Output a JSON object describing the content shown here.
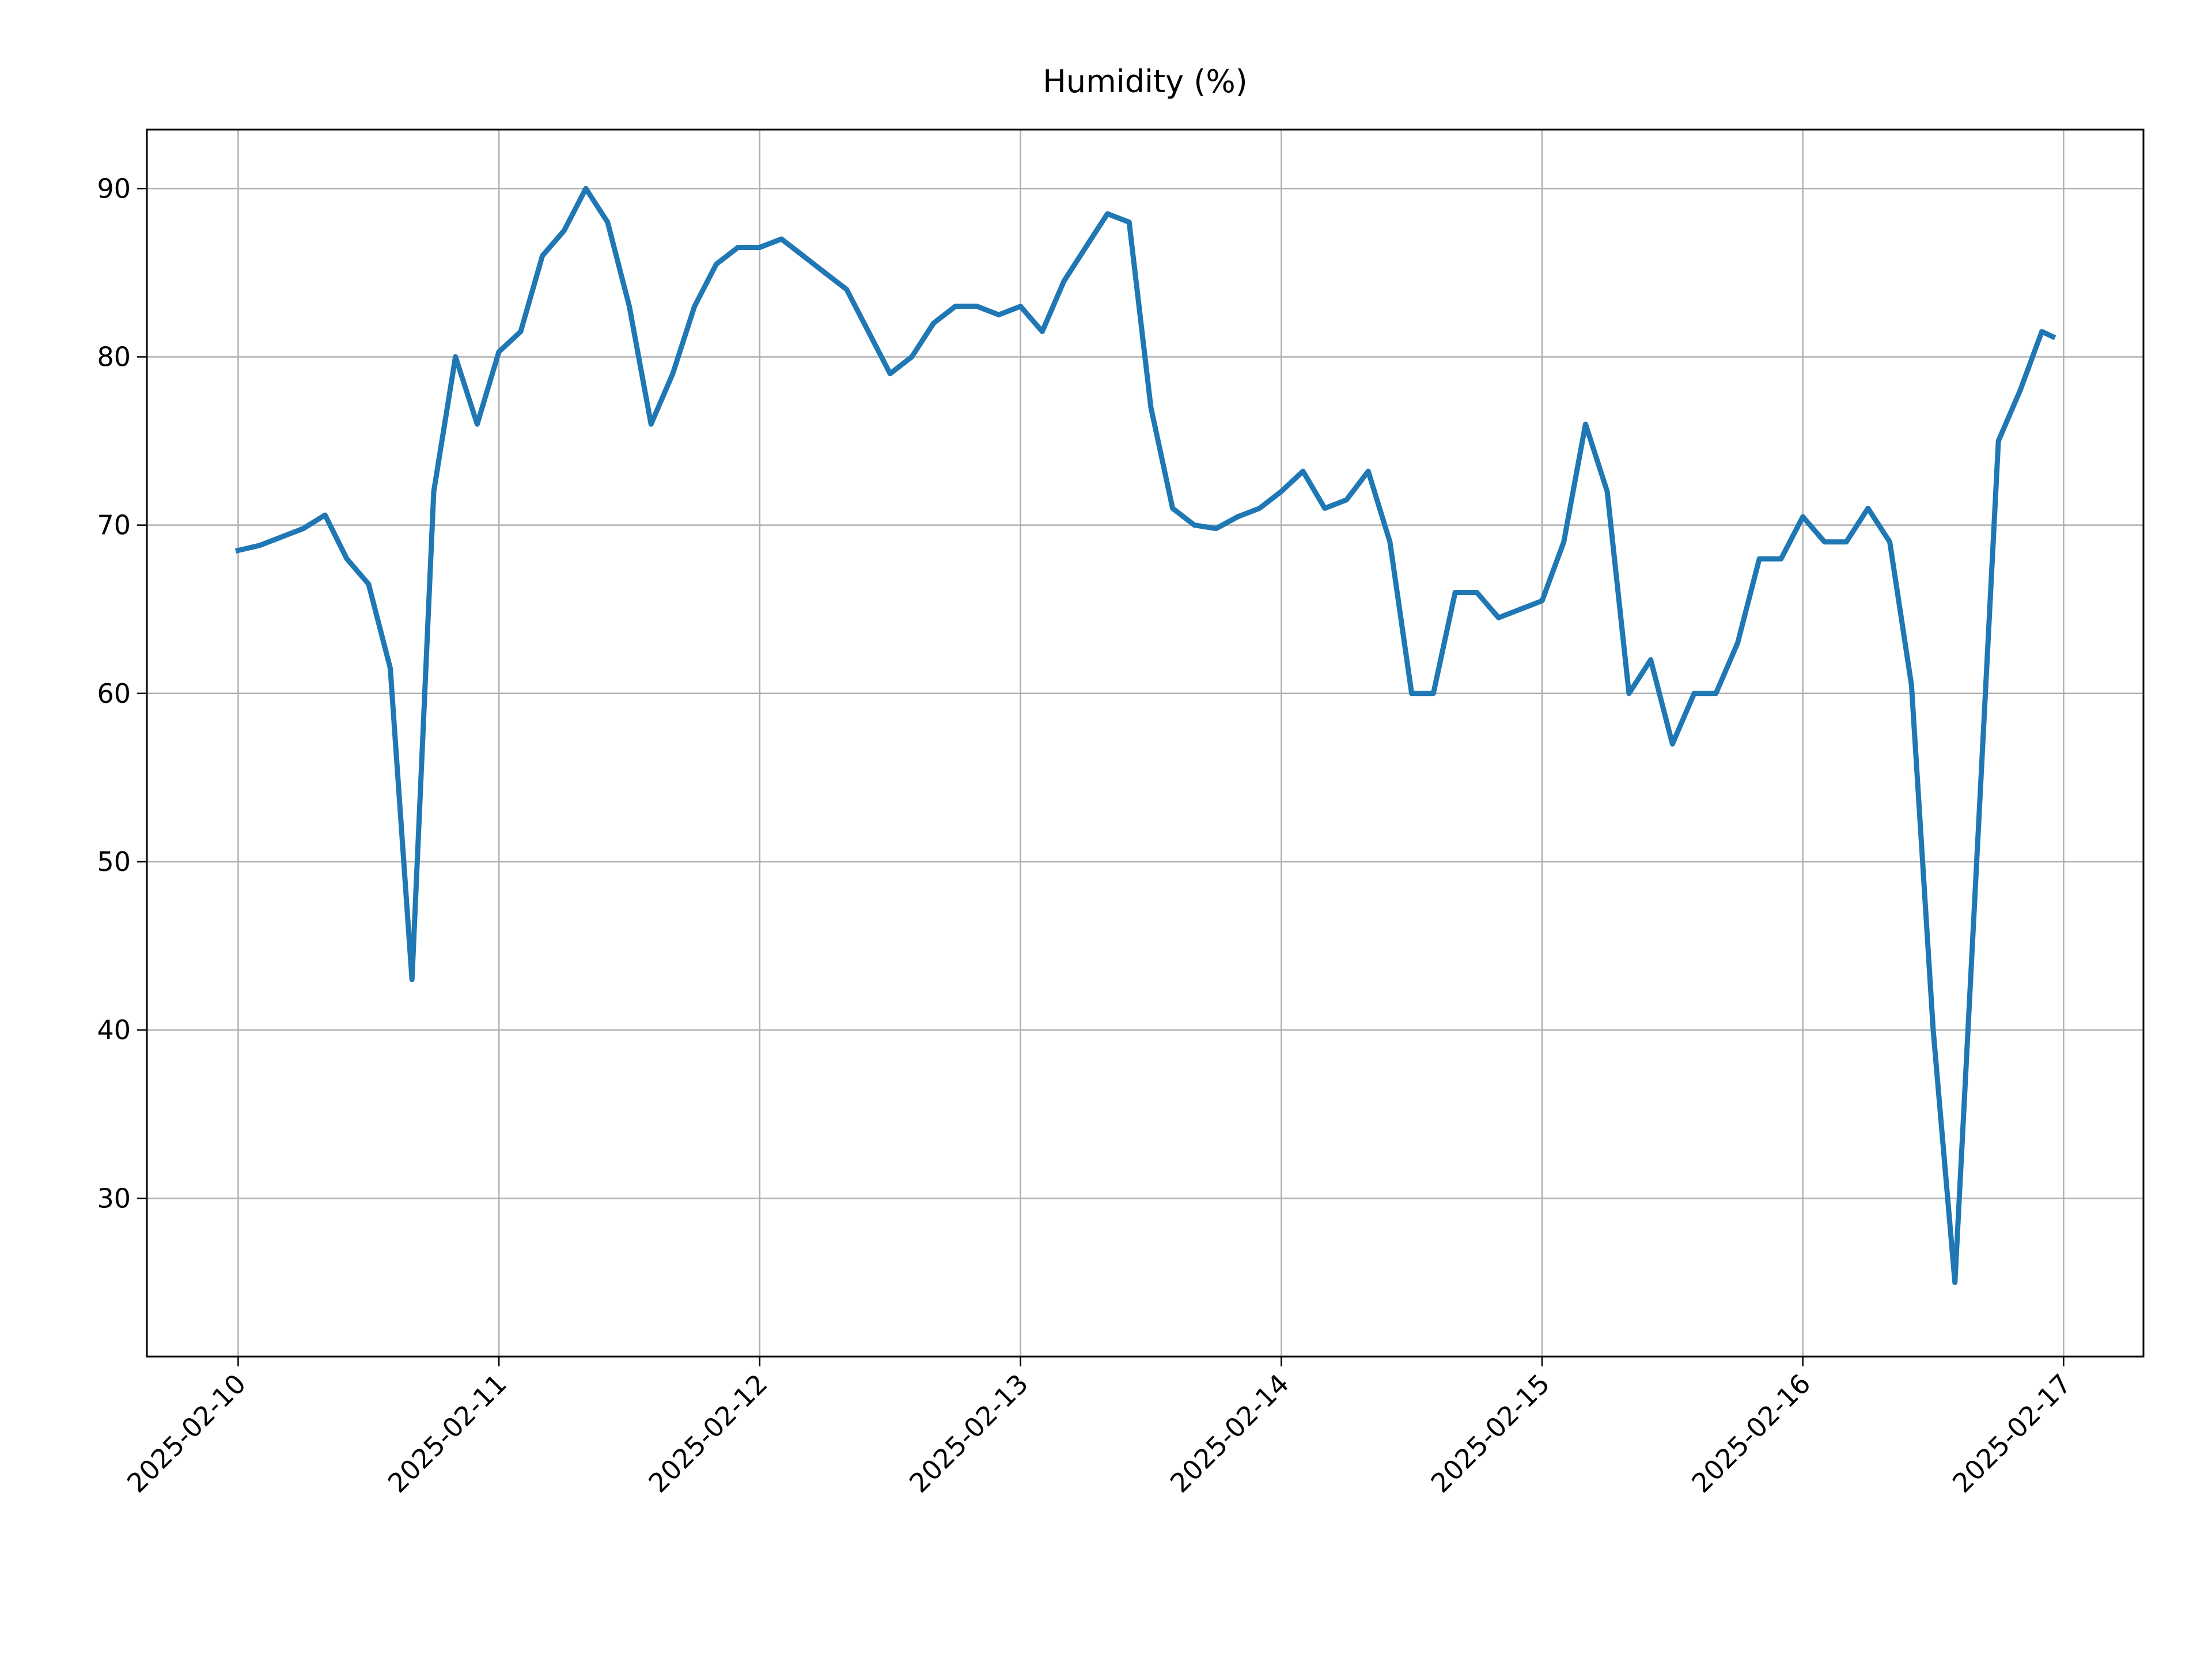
{
  "chart_data": {
    "type": "line",
    "title": "Humidity (%)",
    "x": [
      "2025-02-10T00:00",
      "2025-02-10T02:00",
      "2025-02-10T04:00",
      "2025-02-10T06:00",
      "2025-02-10T08:00",
      "2025-02-10T10:00",
      "2025-02-10T12:00",
      "2025-02-10T14:00",
      "2025-02-10T16:00",
      "2025-02-10T18:00",
      "2025-02-10T20:00",
      "2025-02-10T22:00",
      "2025-02-11T00:00",
      "2025-02-11T02:00",
      "2025-02-11T04:00",
      "2025-02-11T06:00",
      "2025-02-11T08:00",
      "2025-02-11T10:00",
      "2025-02-11T12:00",
      "2025-02-11T14:00",
      "2025-02-11T16:00",
      "2025-02-11T18:00",
      "2025-02-11T20:00",
      "2025-02-11T22:00",
      "2025-02-12T00:00",
      "2025-02-12T02:00",
      "2025-02-12T04:00",
      "2025-02-12T06:00",
      "2025-02-12T08:00",
      "2025-02-12T10:00",
      "2025-02-12T12:00",
      "2025-02-12T14:00",
      "2025-02-12T16:00",
      "2025-02-12T18:00",
      "2025-02-12T20:00",
      "2025-02-12T22:00",
      "2025-02-13T00:00",
      "2025-02-13T02:00",
      "2025-02-13T04:00",
      "2025-02-13T06:00",
      "2025-02-13T08:00",
      "2025-02-13T10:00",
      "2025-02-13T12:00",
      "2025-02-13T14:00",
      "2025-02-13T16:00",
      "2025-02-13T18:00",
      "2025-02-13T20:00",
      "2025-02-13T22:00",
      "2025-02-14T00:00",
      "2025-02-14T02:00",
      "2025-02-14T04:00",
      "2025-02-14T06:00",
      "2025-02-14T08:00",
      "2025-02-14T10:00",
      "2025-02-14T12:00",
      "2025-02-14T14:00",
      "2025-02-14T16:00",
      "2025-02-14T18:00",
      "2025-02-14T20:00",
      "2025-02-14T22:00",
      "2025-02-15T00:00",
      "2025-02-15T02:00",
      "2025-02-15T04:00",
      "2025-02-15T06:00",
      "2025-02-15T08:00",
      "2025-02-15T10:00",
      "2025-02-15T12:00",
      "2025-02-15T14:00",
      "2025-02-15T16:00",
      "2025-02-15T18:00",
      "2025-02-15T20:00",
      "2025-02-15T22:00",
      "2025-02-16T00:00",
      "2025-02-16T02:00",
      "2025-02-16T04:00",
      "2025-02-16T06:00",
      "2025-02-16T08:00",
      "2025-02-16T10:00",
      "2025-02-16T12:00",
      "2025-02-16T14:00",
      "2025-02-16T16:00",
      "2025-02-16T18:00",
      "2025-02-16T20:00",
      "2025-02-16T22:00",
      "2025-02-16T23:00"
    ],
    "series": [
      {
        "name": "Humidity",
        "color": "#1f77b4",
        "values": [
          68.5,
          68.8,
          69.3,
          69.8,
          70.6,
          68,
          66.5,
          61.5,
          43,
          72,
          80,
          76,
          80.3,
          81.5,
          86,
          87.5,
          90,
          88,
          83,
          76,
          79,
          83,
          85.5,
          86.5,
          86.5,
          87,
          86,
          85,
          84,
          81.5,
          79,
          80,
          82,
          83,
          83,
          82.5,
          83,
          81.5,
          84.5,
          86.5,
          88.5,
          88,
          77,
          71,
          70,
          69.8,
          70.5,
          71,
          72,
          73.2,
          71,
          71.5,
          73.2,
          69,
          60,
          60,
          66,
          66,
          64.5,
          65,
          65.5,
          69,
          76,
          72,
          60,
          62,
          57,
          60,
          60,
          63,
          68,
          68,
          70.5,
          69,
          69,
          71,
          69,
          60.5,
          40,
          25,
          50,
          75,
          78,
          81.5,
          81.2
        ]
      }
    ],
    "xlim": [
      "2025-02-09T15:36",
      "2025-02-17T07:21"
    ],
    "xticks": [
      "2025-02-10",
      "2025-02-11",
      "2025-02-12",
      "2025-02-13",
      "2025-02-14",
      "2025-02-15",
      "2025-02-16",
      "2025-02-17"
    ],
    "ylim": [
      20.6,
      93.5
    ],
    "yticks": [
      30,
      40,
      50,
      60,
      70,
      80,
      90
    ],
    "grid": true
  }
}
